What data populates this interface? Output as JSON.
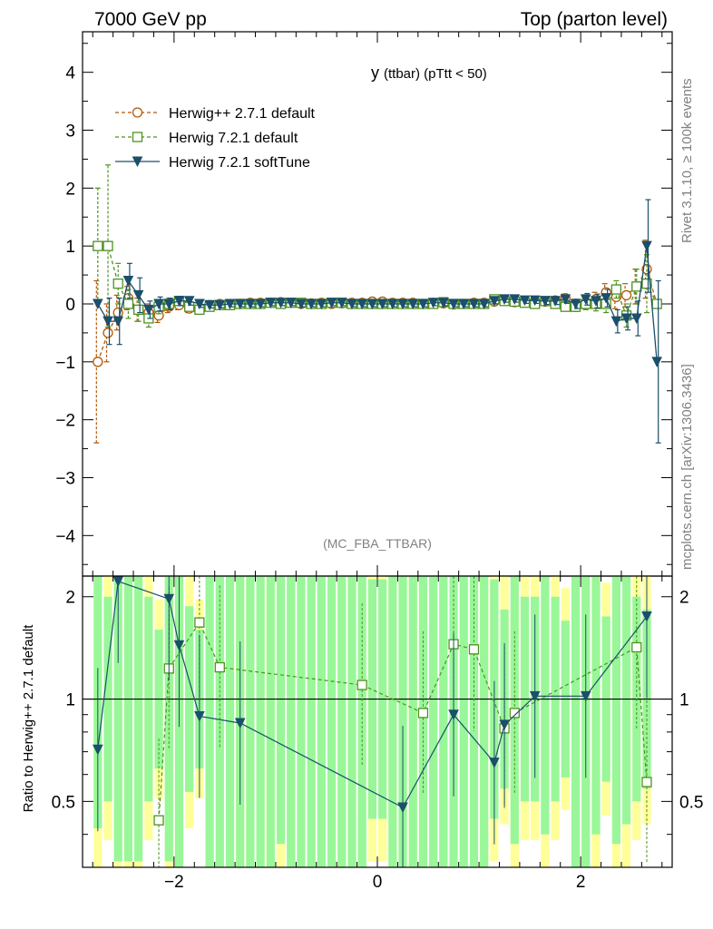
{
  "header": {
    "left": "7000 GeV pp",
    "right": "Top (parton level)",
    "side_top": "Rivet 3.1.10, ≥ 100k events",
    "side_bottom": "mcplots.cern.ch [arXiv:1306.3436]",
    "analysis": "(MC_FBA_TTBAR)"
  },
  "chart_data": [
    {
      "type": "line",
      "title_main": "y",
      "title_sub": "(ttbar)  (pTtt < 50)",
      "xlabel": "",
      "ylabel": "",
      "xlim": [
        -2.9,
        2.9
      ],
      "ylim": [
        -4.7,
        4.7
      ],
      "xticks": [
        -2,
        0,
        2
      ],
      "yticks": [
        -4,
        -3,
        -2,
        -1,
        0,
        1,
        2,
        3,
        4
      ],
      "legend_position": "top-left",
      "x": [
        -2.75,
        -2.65,
        -2.55,
        -2.45,
        -2.35,
        -2.25,
        -2.15,
        -2.05,
        -1.95,
        -1.85,
        -1.75,
        -1.65,
        -1.55,
        -1.45,
        -1.35,
        -1.25,
        -1.15,
        -1.05,
        -0.95,
        -0.85,
        -0.75,
        -0.65,
        -0.55,
        -0.45,
        -0.35,
        -0.25,
        -0.15,
        -0.05,
        0.05,
        0.15,
        0.25,
        0.35,
        0.45,
        0.55,
        0.65,
        0.75,
        0.85,
        0.95,
        1.05,
        1.15,
        1.25,
        1.35,
        1.45,
        1.55,
        1.65,
        1.75,
        1.85,
        1.95,
        2.05,
        2.15,
        2.25,
        2.35,
        2.45,
        2.55,
        2.65,
        2.75
      ],
      "series": [
        {
          "name": "Herwig++ 2.7.1 default",
          "color": "#b35806",
          "marker": "circle-open",
          "dashed": true,
          "values": [
            -1.0,
            -0.5,
            -0.15,
            0.1,
            -0.1,
            -0.15,
            -0.2,
            -0.05,
            -0.02,
            -0.08,
            -0.1,
            -0.02,
            0.0,
            -0.02,
            0.0,
            0.02,
            0.02,
            0.02,
            0.03,
            0.02,
            0.0,
            0.01,
            0.02,
            0.0,
            0.01,
            0.02,
            0.02,
            0.04,
            0.04,
            0.02,
            0.02,
            0.02,
            0.0,
            0.02,
            0.01,
            -0.01,
            0.0,
            0.02,
            0.02,
            0.04,
            0.06,
            0.03,
            0.05,
            0.05,
            0.04,
            0.06,
            0.1,
            0.0,
            0.02,
            0.08,
            0.2,
            0.12,
            0.15,
            0.3,
            0.6,
            0.0
          ],
          "err": [
            1.4,
            0.5,
            0.3,
            0.2,
            0.2,
            0.15,
            0.12,
            0.1,
            0.08,
            0.07,
            0.06,
            0.05,
            0.05,
            0.05,
            0.05,
            0.05,
            0.05,
            0.05,
            0.05,
            0.05,
            0.05,
            0.05,
            0.05,
            0.05,
            0.05,
            0.05,
            0.05,
            0.05,
            0.05,
            0.05,
            0.05,
            0.05,
            0.05,
            0.05,
            0.05,
            0.05,
            0.05,
            0.05,
            0.05,
            0.05,
            0.05,
            0.05,
            0.05,
            0.05,
            0.06,
            0.06,
            0.07,
            0.08,
            0.1,
            0.12,
            0.15,
            0.2,
            0.2,
            0.3,
            0.5,
            0.0
          ]
        },
        {
          "name": "Herwig 7.2.1 default",
          "color": "#4d9221",
          "marker": "square-open",
          "dashed": true,
          "values": [
            1.0,
            1.0,
            0.35,
            0.0,
            -0.1,
            -0.25,
            -0.05,
            0.0,
            0.05,
            -0.05,
            -0.1,
            -0.05,
            -0.02,
            -0.02,
            0.0,
            0.0,
            0.0,
            0.02,
            0.0,
            0.02,
            0.02,
            0.0,
            0.0,
            0.02,
            0.02,
            0.0,
            0.0,
            0.0,
            0.0,
            0.0,
            0.0,
            0.0,
            0.0,
            0.0,
            0.03,
            0.0,
            0.0,
            0.0,
            0.0,
            0.08,
            0.05,
            0.04,
            0.02,
            0.0,
            0.05,
            0.0,
            -0.05,
            -0.05,
            0.0,
            0.0,
            0.0,
            0.25,
            -0.2,
            0.3,
            0.35,
            0.0
          ],
          "err": [
            1.0,
            1.4,
            0.35,
            0.25,
            0.2,
            0.15,
            0.12,
            0.1,
            0.08,
            0.07,
            0.06,
            0.05,
            0.05,
            0.05,
            0.05,
            0.05,
            0.05,
            0.05,
            0.05,
            0.05,
            0.05,
            0.05,
            0.05,
            0.05,
            0.05,
            0.05,
            0.05,
            0.05,
            0.05,
            0.05,
            0.05,
            0.05,
            0.05,
            0.05,
            0.05,
            0.05,
            0.05,
            0.05,
            0.05,
            0.05,
            0.05,
            0.05,
            0.05,
            0.05,
            0.06,
            0.06,
            0.07,
            0.08,
            0.1,
            0.12,
            0.15,
            0.15,
            0.2,
            0.3,
            0.5,
            0.0
          ]
        },
        {
          "name": "Herwig 7.2.1 softTune",
          "color": "#1b4f6b",
          "marker": "triangle-down-filled",
          "dashed": false,
          "values": [
            0.0,
            -0.3,
            -0.3,
            0.4,
            0.15,
            -0.1,
            0.0,
            0.0,
            0.05,
            0.05,
            0.0,
            -0.02,
            -0.02,
            0.0,
            0.0,
            0.0,
            0.0,
            0.02,
            0.02,
            0.02,
            0.0,
            0.0,
            0.0,
            0.02,
            0.02,
            0.0,
            0.0,
            0.0,
            0.0,
            0.0,
            0.0,
            0.0,
            0.0,
            0.02,
            0.02,
            0.0,
            0.0,
            0.0,
            0.0,
            0.05,
            0.08,
            0.08,
            0.06,
            0.06,
            0.05,
            0.05,
            0.08,
            0.0,
            0.08,
            0.05,
            0.1,
            -0.3,
            -0.25,
            -0.25,
            1.0,
            -1.0
          ],
          "err": [
            0.0,
            0.4,
            0.4,
            0.3,
            0.3,
            0.15,
            0.12,
            0.1,
            0.08,
            0.07,
            0.06,
            0.05,
            0.05,
            0.05,
            0.05,
            0.05,
            0.05,
            0.05,
            0.05,
            0.05,
            0.05,
            0.05,
            0.05,
            0.05,
            0.05,
            0.05,
            0.05,
            0.05,
            0.05,
            0.05,
            0.05,
            0.05,
            0.05,
            0.05,
            0.05,
            0.05,
            0.05,
            0.05,
            0.05,
            0.05,
            0.05,
            0.05,
            0.05,
            0.05,
            0.06,
            0.06,
            0.07,
            0.08,
            0.1,
            0.12,
            0.15,
            0.2,
            0.2,
            0.3,
            0.8,
            1.4
          ]
        }
      ]
    },
    {
      "type": "line",
      "ylabel": "Ratio to Herwig++ 2.7.1 default",
      "xlabel": "",
      "xlim": [
        -2.9,
        2.9
      ],
      "ylim": [
        0.32,
        2.3
      ],
      "yscale": "log",
      "xticks": [
        -2,
        0,
        2
      ],
      "yticks": [
        0.5,
        1,
        2
      ],
      "reference_line": 1,
      "bands": "green inner / yellow outer uncertainty band around 1",
      "series": [
        {
          "name": "Herwig 7.2.1 default",
          "color": "#4d9221",
          "marker": "square-open",
          "dashed": true,
          "points": [
            [
              -2.15,
              0.44
            ],
            [
              -2.05,
              1.23
            ],
            [
              -1.75,
              1.68
            ],
            [
              -1.55,
              1.24
            ],
            [
              -0.15,
              1.1
            ],
            [
              0.45,
              0.91
            ],
            [
              0.75,
              1.45
            ],
            [
              0.95,
              1.4
            ],
            [
              1.25,
              0.82
            ],
            [
              1.35,
              0.91
            ],
            [
              2.55,
              1.42
            ],
            [
              2.65,
              0.57
            ]
          ]
        },
        {
          "name": "Herwig 7.2.1 softTune",
          "color": "#1b4f6b",
          "marker": "triangle-down-filled",
          "dashed": false,
          "points": [
            [
              -2.75,
              0.71
            ],
            [
              -2.55,
              2.22
            ],
            [
              -2.05,
              1.97
            ],
            [
              -1.95,
              1.44
            ],
            [
              -1.75,
              0.89
            ],
            [
              -1.35,
              0.85
            ],
            [
              0.25,
              0.48
            ],
            [
              0.75,
              0.9
            ],
            [
              1.15,
              0.65
            ],
            [
              1.25,
              0.84
            ],
            [
              1.55,
              1.02
            ],
            [
              2.05,
              1.02
            ],
            [
              2.65,
              1.75
            ]
          ]
        }
      ]
    }
  ]
}
